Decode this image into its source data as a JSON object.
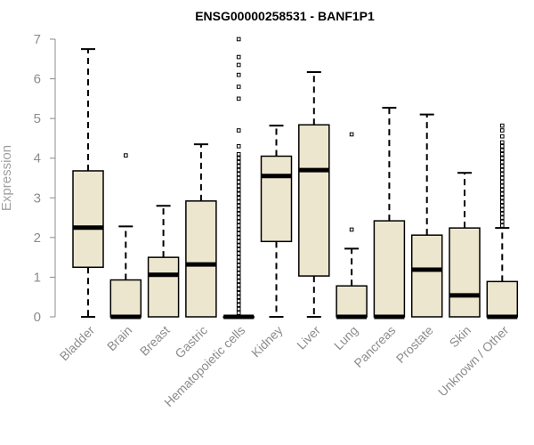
{
  "chart_data": {
    "type": "boxplot",
    "title": "ENSG00000258531 - BANF1P1",
    "xlabel": "",
    "ylabel": "Expression",
    "ylim": [
      0,
      7
    ],
    "yticks": [
      0,
      1,
      2,
      3,
      4,
      5,
      6,
      7
    ],
    "colors": {
      "box_fill": "#ede6cf",
      "line": "#000000",
      "axis": "#8c8c8c",
      "text": "#8c8c8c"
    },
    "categories": [
      "Bladder",
      "Brain",
      "Breast",
      "Gastric",
      "Hematopoietic cells",
      "Kidney",
      "Liver",
      "Lung",
      "Pancreas",
      "Prostate",
      "Skin",
      "Unknown / Other"
    ],
    "boxes": [
      {
        "q1": 1.25,
        "median": 2.25,
        "q3": 3.68,
        "whisker_low": 0.0,
        "whisker_high": 6.75,
        "outliers": []
      },
      {
        "q1": 0.0,
        "median": 0.0,
        "q3": 0.93,
        "whisker_low": 0.0,
        "whisker_high": 2.28,
        "outliers": [
          4.07
        ]
      },
      {
        "q1": 0.0,
        "median": 1.06,
        "q3": 1.5,
        "whisker_low": 0.0,
        "whisker_high": 2.8,
        "outliers": []
      },
      {
        "q1": 0.0,
        "median": 1.32,
        "q3": 2.92,
        "whisker_low": 0.0,
        "whisker_high": 4.35,
        "outliers": []
      },
      {
        "q1": 0.0,
        "median": 0.0,
        "q3": 0.0,
        "whisker_low": 0.0,
        "whisker_high": 0.0,
        "outliers": [
          0.1,
          0.2,
          0.3,
          0.4,
          0.5,
          0.6,
          0.7,
          0.8,
          0.9,
          1.0,
          1.1,
          1.2,
          1.3,
          1.4,
          1.5,
          1.6,
          1.7,
          1.8,
          1.9,
          2.0,
          2.1,
          2.2,
          2.3,
          2.4,
          2.5,
          2.6,
          2.7,
          2.8,
          2.9,
          3.0,
          3.1,
          3.2,
          3.3,
          3.4,
          3.5,
          3.6,
          3.7,
          3.8,
          3.9,
          4.0,
          4.1,
          4.3,
          4.7,
          5.5,
          5.8,
          6.1,
          6.35,
          6.55,
          7.0
        ]
      },
      {
        "q1": 1.9,
        "median": 3.55,
        "q3": 4.05,
        "whisker_low": 0.0,
        "whisker_high": 4.82,
        "outliers": []
      },
      {
        "q1": 1.03,
        "median": 3.7,
        "q3": 4.84,
        "whisker_low": 0.0,
        "whisker_high": 6.17,
        "outliers": []
      },
      {
        "q1": 0.0,
        "median": 0.0,
        "q3": 0.78,
        "whisker_low": 0.0,
        "whisker_high": 1.72,
        "outliers": [
          2.2,
          4.6
        ]
      },
      {
        "q1": 0.0,
        "median": 0.0,
        "q3": 2.42,
        "whisker_low": 0.0,
        "whisker_high": 5.27,
        "outliers": []
      },
      {
        "q1": 0.0,
        "median": 1.19,
        "q3": 2.06,
        "whisker_low": 0.0,
        "whisker_high": 5.1,
        "outliers": []
      },
      {
        "q1": 0.0,
        "median": 0.54,
        "q3": 2.24,
        "whisker_low": 0.0,
        "whisker_high": 3.63,
        "outliers": []
      },
      {
        "q1": 0.0,
        "median": 0.0,
        "q3": 0.89,
        "whisker_low": 0.0,
        "whisker_high": 2.24,
        "outliers": [
          2.3,
          2.4,
          2.5,
          2.6,
          2.7,
          2.8,
          2.9,
          3.0,
          3.1,
          3.2,
          3.3,
          3.4,
          3.5,
          3.6,
          3.7,
          3.8,
          3.9,
          4.0,
          4.1,
          4.2,
          4.3,
          4.4,
          4.55,
          4.7,
          4.82
        ]
      }
    ]
  }
}
